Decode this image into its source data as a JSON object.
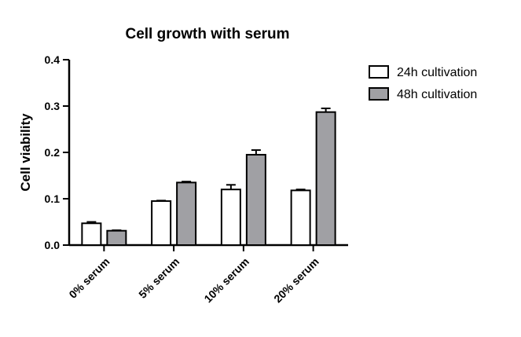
{
  "chart_data": {
    "type": "bar",
    "title": "Cell growth with serum",
    "xlabel": "",
    "ylabel": "Cell viability",
    "ylim": [
      0,
      0.4
    ],
    "yticks": [
      "0.0",
      "0.1",
      "0.2",
      "0.3",
      "0.4"
    ],
    "categories": [
      "0% serum",
      "5% serum",
      "10% serum",
      "20% serum"
    ],
    "series": [
      {
        "name": "24h cultivation",
        "values": [
          0.047,
          0.095,
          0.12,
          0.118
        ],
        "errors": [
          0.003,
          0.001,
          0.01,
          0.002
        ],
        "color": "#ffffff"
      },
      {
        "name": "48h cultivation",
        "values": [
          0.031,
          0.135,
          0.195,
          0.287
        ],
        "errors": [
          0.001,
          0.002,
          0.01,
          0.008
        ],
        "color": "#a0a0a4"
      }
    ],
    "legend_position": "top-right",
    "grid": false
  }
}
